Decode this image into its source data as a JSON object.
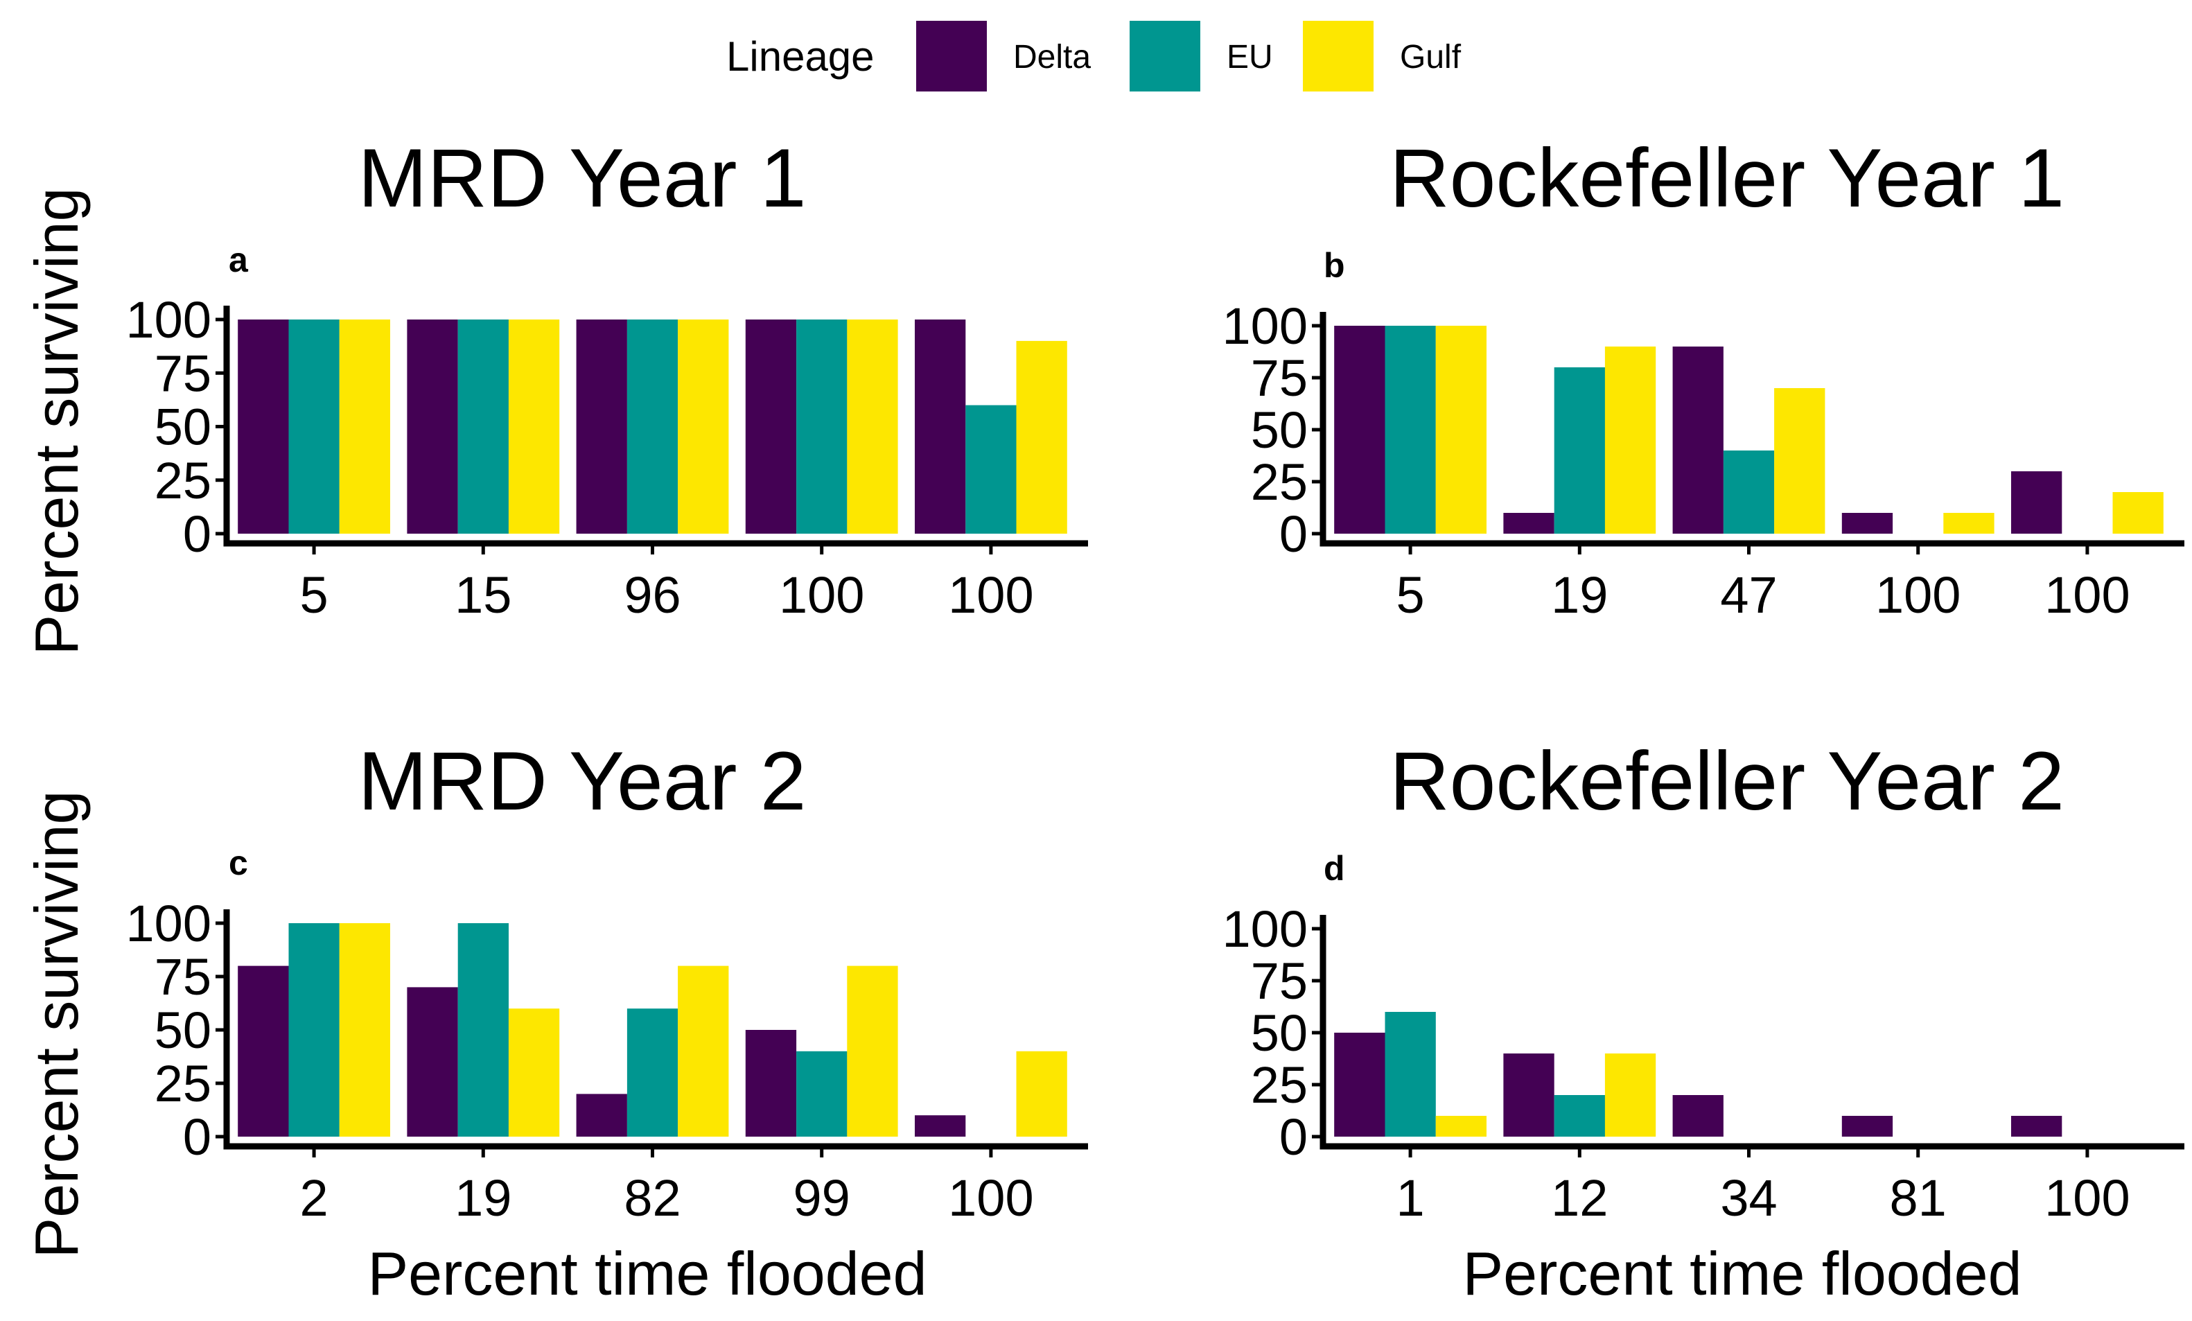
{
  "legend": {
    "title": "Lineage",
    "items": [
      {
        "label": "Delta",
        "color": "#440154"
      },
      {
        "label": "EU",
        "color": "#009690"
      },
      {
        "label": "Gulf",
        "color": "#FDE700"
      }
    ]
  },
  "y_axis_title": "Percent surviving",
  "x_axis_title": "Percent time flooded",
  "chart_data": [
    {
      "type": "bar",
      "tag": "a",
      "title": "MRD Year 1",
      "categories": [
        "5",
        "15",
        "96",
        "100",
        "100"
      ],
      "series": [
        {
          "name": "Delta",
          "values": [
            100,
            100,
            100,
            100,
            100
          ]
        },
        {
          "name": "EU",
          "values": [
            100,
            100,
            100,
            100,
            60
          ]
        },
        {
          "name": "Gulf",
          "values": [
            100,
            100,
            100,
            100,
            90
          ]
        }
      ],
      "yticks": [
        "0",
        "25",
        "50",
        "75",
        "100"
      ],
      "ylim": [
        0,
        100
      ],
      "xlabel": "",
      "ylabel": "Percent surviving"
    },
    {
      "type": "bar",
      "tag": "b",
      "title": "Rockefeller Year 1",
      "categories": [
        "5",
        "19",
        "47",
        "100",
        "100"
      ],
      "series": [
        {
          "name": "Delta",
          "values": [
            100,
            10,
            90,
            10,
            30
          ]
        },
        {
          "name": "EU",
          "values": [
            100,
            80,
            40,
            0,
            0
          ]
        },
        {
          "name": "Gulf",
          "values": [
            100,
            90,
            70,
            10,
            20
          ]
        }
      ],
      "yticks": [
        "0",
        "25",
        "50",
        "75",
        "100"
      ],
      "ylim": [
        0,
        100
      ],
      "xlabel": "",
      "ylabel": ""
    },
    {
      "type": "bar",
      "tag": "c",
      "title": "MRD Year 2",
      "categories": [
        "2",
        "19",
        "82",
        "99",
        "100"
      ],
      "series": [
        {
          "name": "Delta",
          "values": [
            80,
            70,
            20,
            50,
            10
          ]
        },
        {
          "name": "EU",
          "values": [
            100,
            100,
            60,
            40,
            0
          ]
        },
        {
          "name": "Gulf",
          "values": [
            100,
            60,
            80,
            80,
            40
          ]
        }
      ],
      "yticks": [
        "0",
        "25",
        "50",
        "75",
        "100"
      ],
      "ylim": [
        0,
        100
      ],
      "xlabel": "Percent time flooded",
      "ylabel": "Percent surviving"
    },
    {
      "type": "bar",
      "tag": "d",
      "title": "Rockefeller Year 2",
      "categories": [
        "1",
        "12",
        "34",
        "81",
        "100"
      ],
      "series": [
        {
          "name": "Delta",
          "values": [
            50,
            40,
            20,
            10,
            10
          ]
        },
        {
          "name": "EU",
          "values": [
            60,
            20,
            0,
            0,
            0
          ]
        },
        {
          "name": "Gulf",
          "values": [
            10,
            40,
            0,
            0,
            0
          ]
        }
      ],
      "yticks": [
        "0",
        "25",
        "50",
        "75",
        "100"
      ],
      "ylim": [
        0,
        100
      ],
      "xlabel": "Percent time flooded",
      "ylabel": ""
    }
  ]
}
